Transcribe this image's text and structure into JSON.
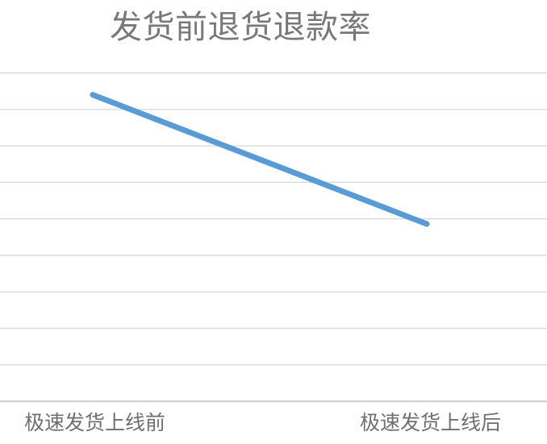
{
  "chart_data": {
    "type": "line",
    "title": "发货前退货退款率",
    "categories": [
      "极速发货上线前",
      "极速发货上线后"
    ],
    "series": [
      {
        "name": "发货前退货退款率",
        "values": [
          8.4,
          4.86
        ]
      }
    ],
    "ylim": [
      0,
      9
    ],
    "gridline_count": 10,
    "y_tick_labels_visible": false,
    "x_axis_labels_visible": true,
    "legend_position": "none",
    "grid": "horizontal-only",
    "colors": {
      "line": "#5b9bd5",
      "gridline": "#d9d9d9",
      "axis_line": "#cfcfcf",
      "title_text": "#787878",
      "axis_label_text": "#6f6f6f",
      "background": "#ffffff"
    }
  }
}
